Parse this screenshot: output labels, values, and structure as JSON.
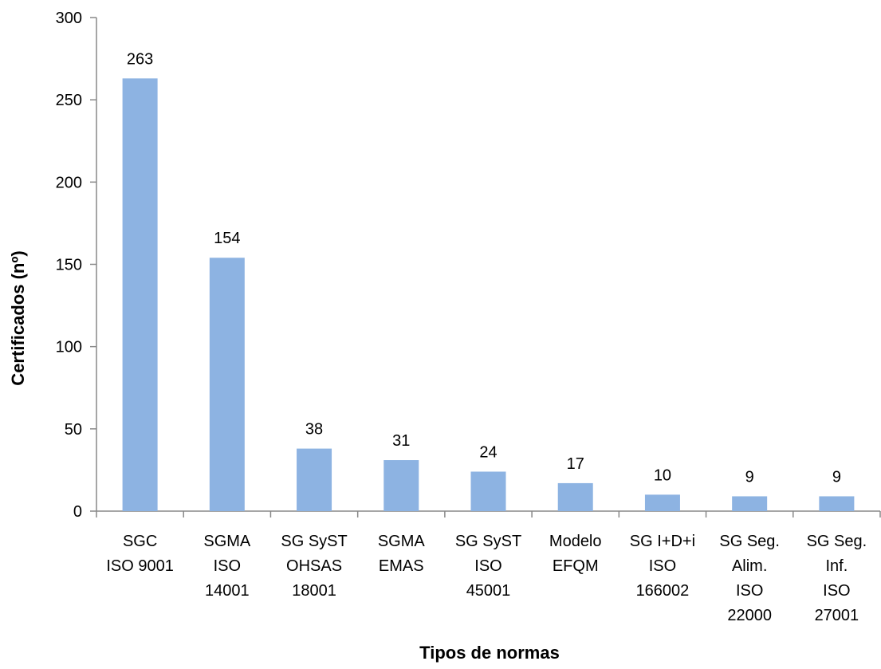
{
  "chart_data": {
    "type": "bar",
    "categories": [
      [
        "SGC",
        "ISO 9001"
      ],
      [
        "SGMA",
        "ISO",
        "14001"
      ],
      [
        "SG SyST",
        "OHSAS",
        "18001"
      ],
      [
        "SGMA",
        "EMAS"
      ],
      [
        "SG SyST",
        "ISO",
        "45001"
      ],
      [
        "Modelo",
        "EFQM"
      ],
      [
        "SG I+D+i",
        "ISO",
        "166002"
      ],
      [
        "SG Seg.",
        "Alim.",
        "ISO",
        "22000"
      ],
      [
        "SG Seg.",
        "Inf.",
        "ISO",
        "27001"
      ]
    ],
    "values": [
      263,
      154,
      38,
      31,
      24,
      17,
      10,
      9,
      9
    ],
    "data_labels": [
      "263",
      "154",
      "38",
      "31",
      "24",
      "17",
      "10",
      "9",
      "9"
    ],
    "title": "",
    "xlabel": "Tipos de normas",
    "ylabel": "Certificados (nº)",
    "ylim": [
      0,
      300
    ],
    "yticks": [
      0,
      50,
      100,
      150,
      200,
      250,
      300
    ],
    "grid": false,
    "legend": "none",
    "bar_color": "#8DB3E2",
    "axis_color": "#888888"
  }
}
